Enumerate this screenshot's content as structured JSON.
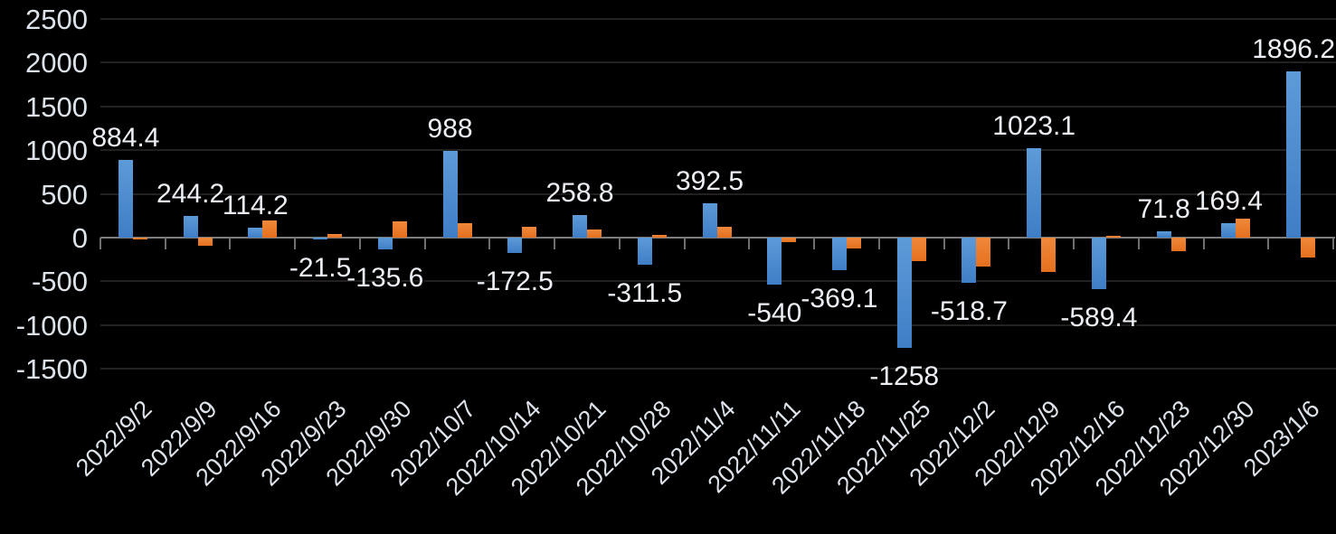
{
  "chart_data": {
    "type": "bar",
    "title": "",
    "categories": [
      "2022/9/2",
      "2022/9/9",
      "2022/9/16",
      "2022/9/23",
      "2022/9/30",
      "2022/10/7",
      "2022/10/14",
      "2022/10/21",
      "2022/10/28",
      "2022/11/4",
      "2022/11/11",
      "2022/11/18",
      "2022/11/25",
      "2022/12/2",
      "2022/12/9",
      "2022/12/16",
      "2022/12/23",
      "2022/12/30",
      "2023/1/6"
    ],
    "series": [
      {
        "name": "blue",
        "color_top": "#5c9ad8",
        "color_bottom": "#3f7ec6",
        "values": [
          884.4,
          244.2,
          114.2,
          -21.5,
          -135.6,
          988,
          -172.5,
          258.8,
          -311.5,
          392.5,
          -540,
          -369.1,
          -1258,
          -518.7,
          1023.1,
          -589.4,
          71.8,
          169.4,
          1896.2
        ],
        "data_labels": [
          "884.4",
          "244.2",
          "114.2",
          "-21.5",
          "-135.6",
          "988",
          "-172.5",
          "258.8",
          "-311.5",
          "392.5",
          "-540",
          "-369.1",
          "-1258",
          "-518.7",
          "1023.1",
          "-589.4",
          "71.8",
          "169.4",
          "1896.2"
        ]
      },
      {
        "name": "orange",
        "color_top": "#f0883b",
        "color_bottom": "#e4701e",
        "values": [
          -25,
          -90,
          200,
          45,
          190,
          170,
          125,
          95,
          30,
          120,
          -50,
          -120,
          -270,
          -330,
          -390,
          15,
          -160,
          220,
          -230
        ],
        "data_labels": []
      }
    ],
    "ylim": [
      -1500,
      2500
    ],
    "ytick_step": 500,
    "ytick_labels": [
      "2500",
      "2000",
      "1500",
      "1000",
      "500",
      "0",
      "-500",
      "-1000",
      "-1500"
    ],
    "grid": true,
    "legend": "none",
    "colors": {
      "background": "#000000",
      "gridline": "#222222",
      "axis_line": "#7d7d7d",
      "tick": "#6f6f6f",
      "data_label_text": "#eceff4",
      "axis_label_text": "#dde3ea"
    }
  }
}
